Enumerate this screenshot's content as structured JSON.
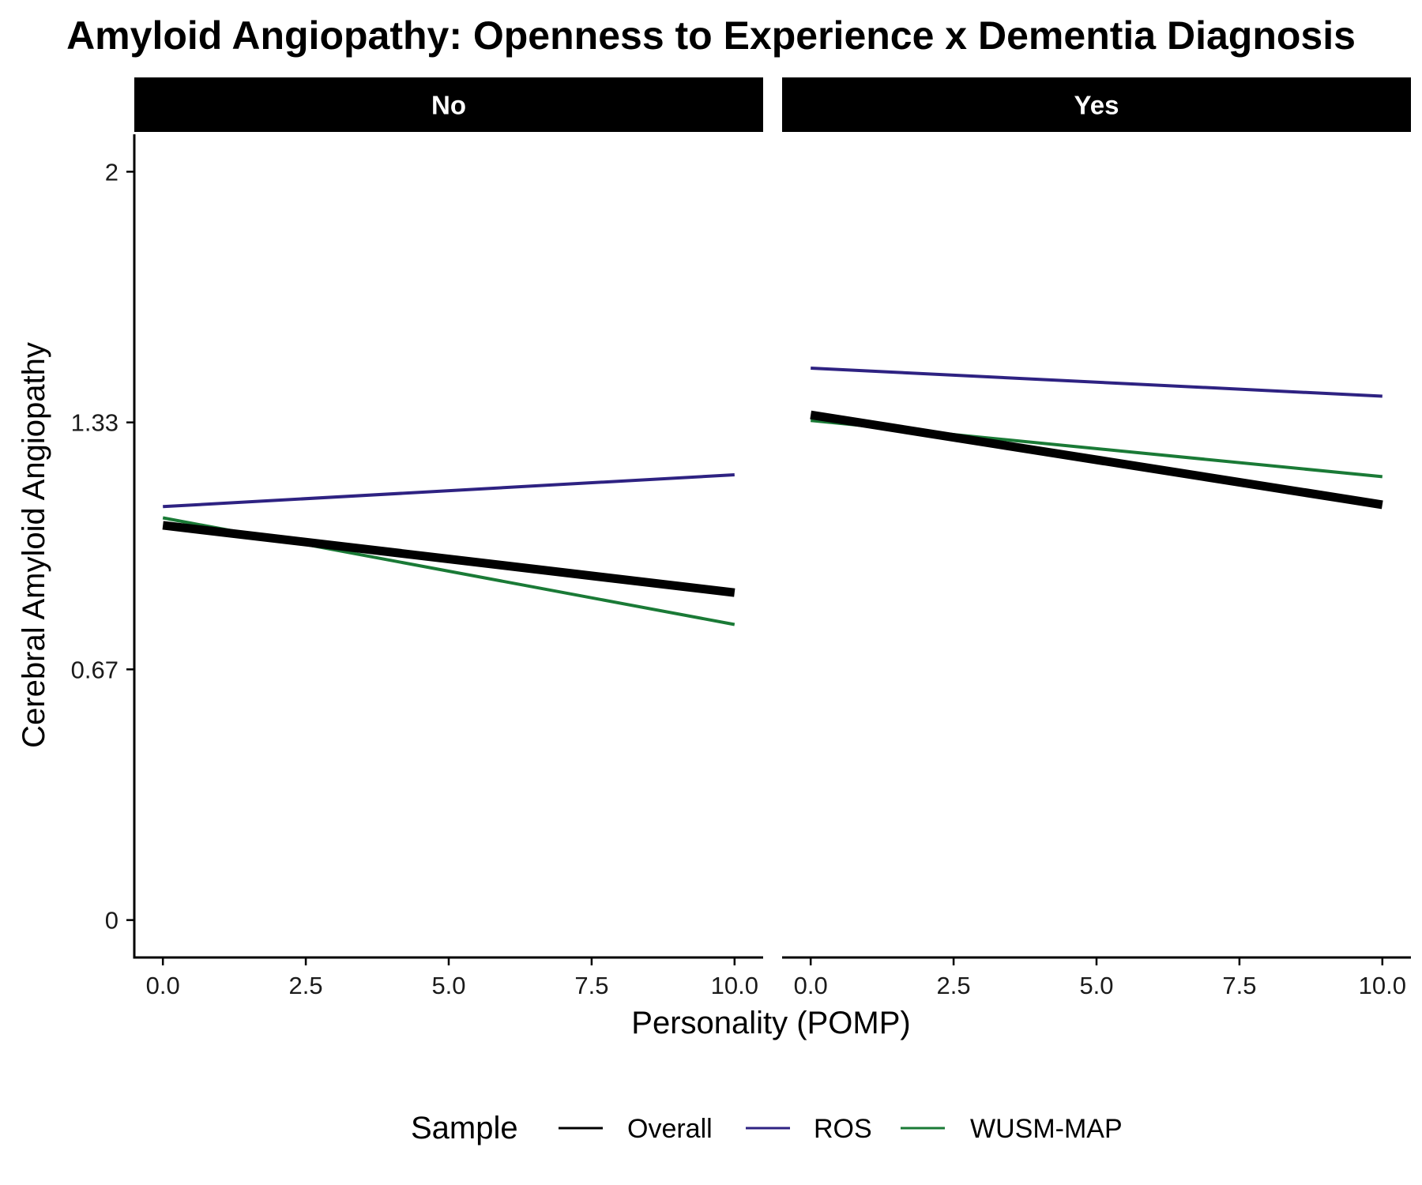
{
  "chart_data": {
    "type": "line",
    "title": "Amyloid Angiopathy: Openness to Experience x Dementia Diagnosis",
    "xlabel": "Personality (POMP)",
    "ylabel": "Cerebral Amyloid Angiopathy",
    "xlim": [
      -0.5,
      10.5
    ],
    "ylim": [
      -0.1,
      2.1
    ],
    "x_ticks": [
      "0.0",
      "2.5",
      "5.0",
      "7.5",
      "10.0"
    ],
    "x_tick_values": [
      0,
      2.5,
      5,
      7.5,
      10
    ],
    "y_ticks": [
      "0",
      "0.67",
      "1.33",
      "2"
    ],
    "y_tick_values": [
      0,
      0.67,
      1.33,
      2
    ],
    "grid": false,
    "legend": {
      "title": "Sample",
      "position": "bottom",
      "entries": [
        "Overall",
        "ROS",
        "WUSM-MAP"
      ]
    },
    "colors": {
      "Overall": "#000000",
      "ROS": "#2e2282",
      "WUSM-MAP": "#1a7a36"
    },
    "panels": [
      {
        "label": "No",
        "series": [
          {
            "name": "Overall",
            "x": [
              0,
              10
            ],
            "y": [
              1.055,
              0.875
            ]
          },
          {
            "name": "ROS",
            "x": [
              0,
              10
            ],
            "y": [
              1.105,
              1.19
            ]
          },
          {
            "name": "WUSM-MAP",
            "x": [
              0,
              10
            ],
            "y": [
              1.075,
              0.79
            ]
          }
        ]
      },
      {
        "label": "Yes",
        "series": [
          {
            "name": "Overall",
            "x": [
              0,
              10
            ],
            "y": [
              1.35,
              1.11
            ]
          },
          {
            "name": "ROS",
            "x": [
              0,
              10
            ],
            "y": [
              1.475,
              1.4
            ]
          },
          {
            "name": "WUSM-MAP",
            "x": [
              0,
              10
            ],
            "y": [
              1.335,
              1.185
            ]
          }
        ]
      }
    ]
  }
}
